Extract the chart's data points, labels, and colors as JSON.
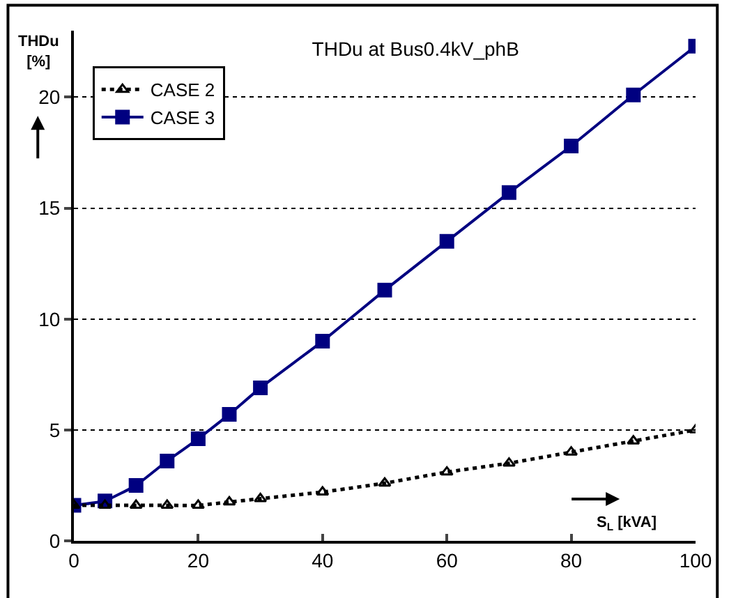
{
  "chart_data": {
    "type": "line",
    "title": "THDu at Bus0.4kV_phB",
    "xlabel": "S$_{L}$ [kVA]",
    "ylabel": "THDu [%]",
    "x": [
      0,
      5,
      10,
      15,
      20,
      25,
      30,
      40,
      50,
      60,
      70,
      80,
      90,
      100
    ],
    "series": [
      {
        "name": "CASE 2",
        "color": "#000000",
        "marker": "triangle",
        "line_style": "dotted",
        "values": [
          1.6,
          1.6,
          1.6,
          1.6,
          1.6,
          1.75,
          1.9,
          2.2,
          2.6,
          3.1,
          3.5,
          4.0,
          4.5,
          5.0
        ]
      },
      {
        "name": "CASE 3",
        "color": "#000080",
        "marker": "square",
        "line_style": "solid",
        "values": [
          1.6,
          1.8,
          2.5,
          3.6,
          4.6,
          5.7,
          6.9,
          9.0,
          11.3,
          13.5,
          15.7,
          17.8,
          20.1,
          22.3
        ]
      }
    ],
    "xlim": [
      0,
      100
    ],
    "xticks": [
      0,
      20,
      40,
      60,
      80,
      100
    ],
    "ylim": [
      0,
      23
    ],
    "yticks": [
      0,
      5,
      10,
      15,
      20
    ],
    "grid": "y",
    "legend": "top left"
  }
}
